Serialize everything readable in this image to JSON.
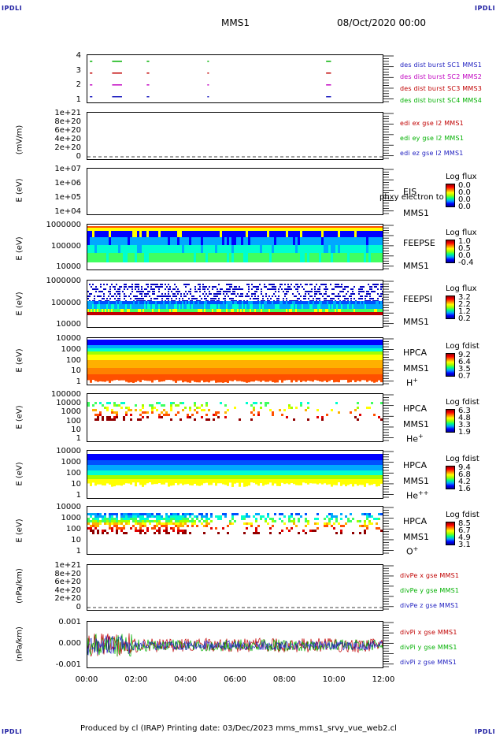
{
  "corners": {
    "tl": "IPDLI",
    "tr": "IPDLI",
    "bl": "IPDLI",
    "br": "IPDLI"
  },
  "header": {
    "mission": "MMS1",
    "date": "08/Oct/2020 00:00"
  },
  "footer": "Produced by cl (IRAP)   Printing date: 03/Dec/2023   mms_mms1_srvy_vue_web2.cl",
  "x_ticks": [
    "00:00",
    "02:00",
    "04:00",
    "06:00",
    "08:00",
    "10:00",
    "12:00"
  ],
  "panels": [
    {
      "id": "burst",
      "ylabel": "",
      "ticks": [
        "4",
        "3",
        "2",
        "1"
      ],
      "legend": [
        {
          "text": "des dist burst SC1 MMS1",
          "color": "#2020c0"
        },
        {
          "text": "des dist burst SC2 MMS2",
          "color": "#c000c0"
        },
        {
          "text": "des dist burst SC3 MMS3",
          "color": "#c00000"
        },
        {
          "text": "des dist burst SC4 MMS4",
          "color": "#00b000"
        }
      ]
    },
    {
      "id": "edi",
      "ylabel": "(mV/m)",
      "ticks": [
        "1e+21",
        "8e+20",
        "6e+20",
        "4e+20",
        "2e+20",
        "0"
      ],
      "legend": [
        {
          "text": "edi ex gse l2 MMS1",
          "color": "#c00000"
        },
        {
          "text": "edi ey gse l2 MMS1",
          "color": "#00b000"
        },
        {
          "text": "edi ez gse l2 MMS1",
          "color": "#2020c0"
        }
      ]
    },
    {
      "id": "eis",
      "ylabel": "E (eV)",
      "ticks": [
        "1e+07",
        "1e+06",
        "1e+05",
        "1e+04"
      ],
      "inst": [
        "EIS",
        "MMS1"
      ],
      "overlay": "phxy electron to",
      "cb": {
        "title": "Log flux",
        "vals": [
          "0.0",
          "0.0",
          "0.0",
          "0.0"
        ]
      }
    },
    {
      "id": "feepse",
      "ylabel": "E (eV)",
      "ticks": [
        "1000000",
        "100000",
        "10000"
      ],
      "inst": [
        "FEEPSE",
        "MMS1"
      ],
      "cb": {
        "title": "Log flux",
        "vals": [
          "1.0",
          "0.5",
          "0.0",
          "-0.4"
        ]
      }
    },
    {
      "id": "feepsi",
      "ylabel": "E (eV)",
      "ticks": [
        "1000000",
        "100000",
        "10000"
      ],
      "inst": [
        "FEEPSI",
        "MMS1"
      ],
      "cb": {
        "title": "Log flux",
        "vals": [
          "3.2",
          "2.2",
          "1.2",
          "0.2"
        ]
      }
    },
    {
      "id": "hpca_h",
      "ylabel": "E (eV)",
      "ticks": [
        "10000",
        "1000",
        "100",
        "10",
        "1"
      ],
      "inst": [
        "HPCA",
        "MMS1",
        "H+"
      ],
      "cb": {
        "title": "Log fdist",
        "vals": [
          "9.2",
          "6.4",
          "3.5",
          "0.7"
        ]
      }
    },
    {
      "id": "hpca_he",
      "ylabel": "E (eV)",
      "ticks": [
        "100000",
        "10000",
        "1000",
        "100",
        "10",
        "1"
      ],
      "inst": [
        "HPCA",
        "MMS1",
        "He+"
      ],
      "cb": {
        "title": "Log fdist",
        "vals": [
          "6.3",
          "4.8",
          "3.3",
          "1.9"
        ]
      }
    },
    {
      "id": "hpca_hepp",
      "ylabel": "E (eV)",
      "ticks": [
        "10000",
        "1000",
        "100",
        "10",
        "1"
      ],
      "inst": [
        "HPCA",
        "MMS1",
        "He++"
      ],
      "cb": {
        "title": "Log fdist",
        "vals": [
          "9.4",
          "6.8",
          "4.2",
          "1.6"
        ]
      }
    },
    {
      "id": "hpca_o",
      "ylabel": "E (eV)",
      "ticks": [
        "10000",
        "1000",
        "100",
        "10",
        "1"
      ],
      "inst": [
        "HPCA",
        "MMS1",
        "O+"
      ],
      "cb": {
        "title": "Log fdist",
        "vals": [
          "8.5",
          "6.7",
          "4.9",
          "3.1"
        ]
      }
    },
    {
      "id": "divpe",
      "ylabel": "(nPa/km)",
      "ticks": [
        "1e+21",
        "8e+20",
        "6e+20",
        "4e+20",
        "2e+20",
        "0"
      ],
      "legend": [
        {
          "text": "divPe x gse MMS1",
          "color": "#c00000"
        },
        {
          "text": "divPe y gse MMS1",
          "color": "#00b000"
        },
        {
          "text": "divPe z gse MMS1",
          "color": "#2020c0"
        }
      ]
    },
    {
      "id": "divpi",
      "ylabel": "(nPa/km)",
      "ticks": [
        "0.001",
        "0.000",
        "-0.001"
      ],
      "legend": [
        {
          "text": "divPi x gse MMS1",
          "color": "#c00000"
        },
        {
          "text": "divPi y gse MMS1",
          "color": "#00b000"
        },
        {
          "text": "divPi z gse MMS1",
          "color": "#2020c0"
        }
      ]
    }
  ],
  "chart_data": {
    "type": "heatmap",
    "x_range": [
      "00:00",
      "12:00"
    ],
    "burst_intervals_hours": {
      "SC1": [
        [
          0.1,
          0.2
        ],
        [
          1.0,
          1.4
        ],
        [
          2.4,
          2.5
        ],
        [
          4.85,
          4.9
        ],
        [
          9.65,
          9.85
        ]
      ],
      "SC2": [
        [
          0.1,
          0.2
        ],
        [
          1.0,
          1.4
        ],
        [
          2.4,
          2.5
        ],
        [
          4.85,
          4.9
        ],
        [
          9.65,
          9.85
        ]
      ],
      "SC3": [
        [
          0.1,
          0.2
        ],
        [
          1.0,
          1.4
        ],
        [
          2.4,
          2.5
        ],
        [
          4.85,
          4.9
        ],
        [
          9.65,
          9.85
        ]
      ],
      "SC4": [
        [
          0.1,
          0.2
        ],
        [
          1.0,
          1.4
        ],
        [
          2.4,
          2.5
        ],
        [
          4.85,
          4.9
        ],
        [
          9.65,
          9.85
        ]
      ]
    },
    "divpi_range": [
      -0.0015,
      0.0015
    ]
  }
}
